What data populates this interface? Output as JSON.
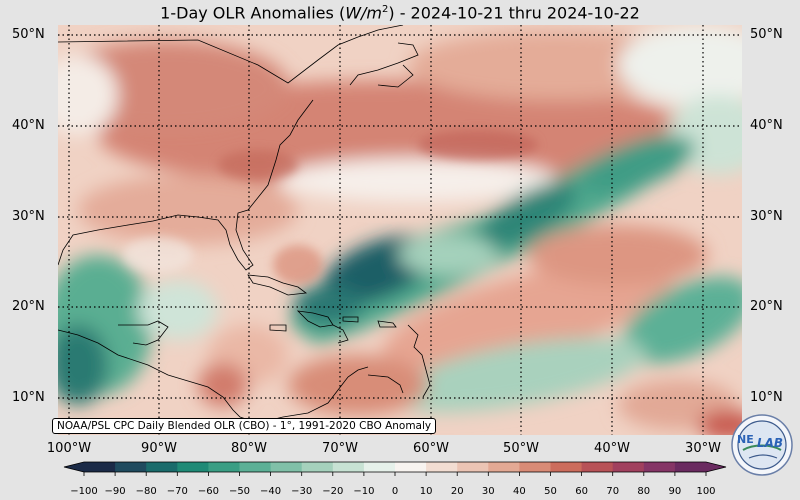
{
  "title": {
    "prefix": "1-Day OLR Anomalies (",
    "unit_base": "W/m",
    "unit_exp": "2",
    "suffix": ") - 2024-10-21 thru 2024-10-22"
  },
  "lat_labels": [
    "50°N",
    "40°N",
    "30°N",
    "20°N",
    "10°N"
  ],
  "lon_labels": [
    "100°W",
    "90°W",
    "80°W",
    "70°W",
    "60°W",
    "50°W",
    "40°W",
    "30°W"
  ],
  "source_note": "NOAA/PSL CPC Daily Blended OLR (CBO) - 1°, 1991-2020 CBO Anomaly",
  "colorbar": {
    "ticks": [
      "−100",
      "−90",
      "−80",
      "−70",
      "−60",
      "−50",
      "−40",
      "−30",
      "−20",
      "−10",
      "0",
      "10",
      "20",
      "30",
      "40",
      "50",
      "60",
      "70",
      "80",
      "90",
      "100"
    ],
    "colors": [
      "#1b2a47",
      "#1f4a5e",
      "#1a6b6b",
      "#1f8a76",
      "#3a9e84",
      "#5cb096",
      "#80c0a8",
      "#a5d1bc",
      "#c7e2d3",
      "#e6f1ea",
      "#f8f4f0",
      "#f2ddd2",
      "#ebc4b4",
      "#e3a994",
      "#d98b76",
      "#cc6c5c",
      "#b85257",
      "#a1405e",
      "#853566",
      "#6a2a60"
    ]
  },
  "logo": {
    "text_left": "NE",
    "text_right": "LAB",
    "accent": "#2a62b6"
  },
  "colors": {
    "positive": "#d98b76",
    "negative": "#3a9e84",
    "base": "#f3ddd2"
  }
}
